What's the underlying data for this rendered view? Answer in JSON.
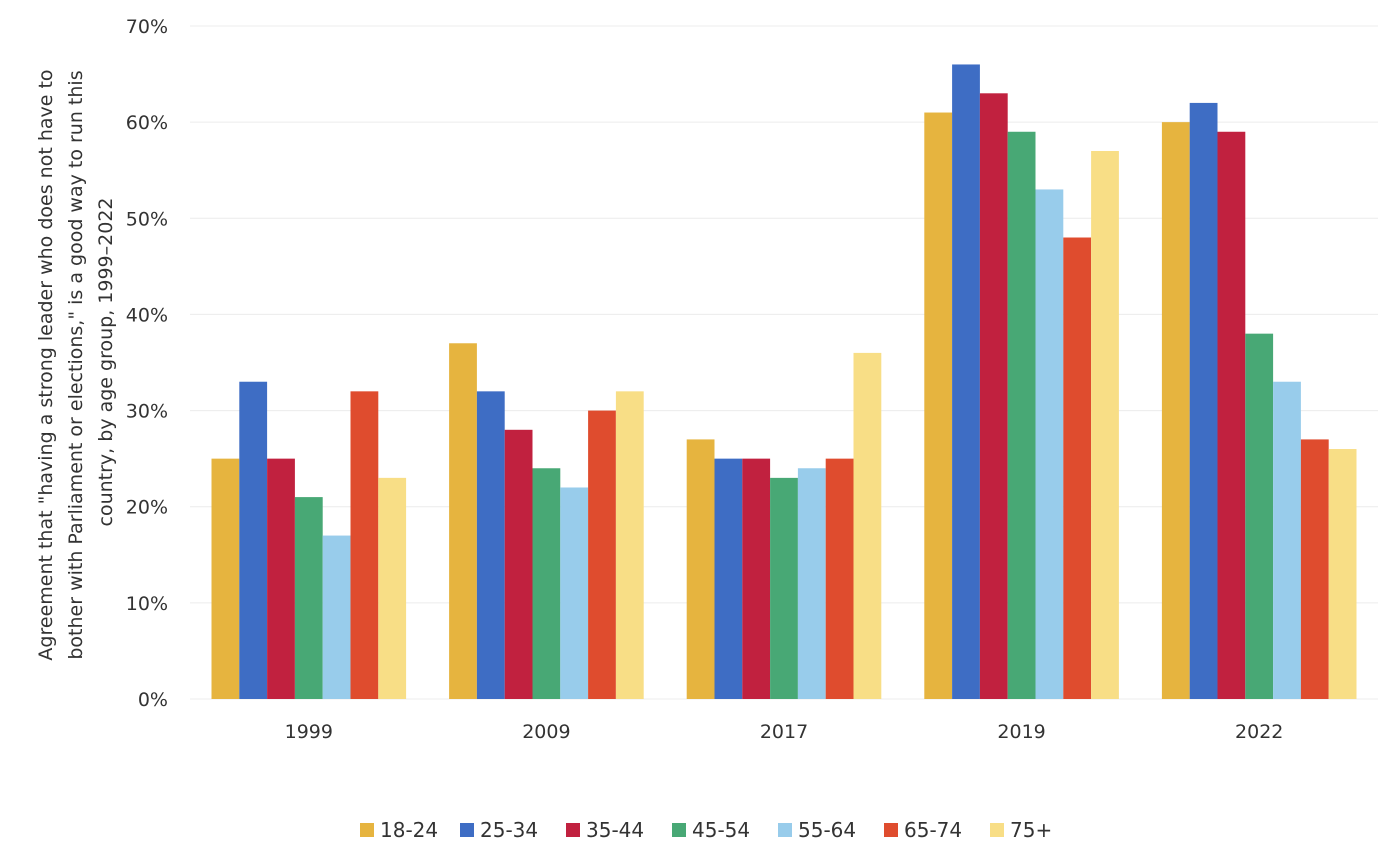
{
  "chart_data": {
    "type": "bar",
    "ylabel": "Agreement that \"having a strong leader who does not have to bother with Parliament or elections,\" is a good way to run this country, by age group, 1999–2022",
    "ylabel_lines": [
      "Agreement that \"having a strong leader who does not have to",
      "bother with Parliament or elections,\" is a good way to run this",
      "country, by age group, 1999–2022"
    ],
    "categories": [
      "1999",
      "2009",
      "2017",
      "2019",
      "2022"
    ],
    "ylim": [
      0,
      70
    ],
    "yticks": [
      0,
      10,
      20,
      30,
      40,
      50,
      60,
      70
    ],
    "ytick_labels": [
      "0%",
      "10%",
      "20%",
      "30%",
      "40%",
      "50%",
      "60%",
      "70%"
    ],
    "grid": true,
    "legend_position": "bottom",
    "series": [
      {
        "name": "18-24",
        "color": "#E6B43F",
        "values": [
          25,
          37,
          27,
          61,
          60
        ]
      },
      {
        "name": "25-34",
        "color": "#3E6DC4",
        "values": [
          33,
          32,
          25,
          66,
          62
        ]
      },
      {
        "name": "35-44",
        "color": "#C1213F",
        "values": [
          25,
          28,
          25,
          63,
          59
        ]
      },
      {
        "name": "45-54",
        "color": "#48A875",
        "values": [
          21,
          24,
          23,
          59,
          38
        ]
      },
      {
        "name": "55-64",
        "color": "#98CCEB",
        "values": [
          17,
          22,
          24,
          53,
          33
        ]
      },
      {
        "name": "65-74",
        "color": "#DF4C2E",
        "values": [
          32,
          30,
          25,
          48,
          27
        ]
      },
      {
        "name": "75+",
        "color": "#F8DE86",
        "values": [
          23,
          32,
          36,
          57,
          26
        ]
      }
    ]
  }
}
